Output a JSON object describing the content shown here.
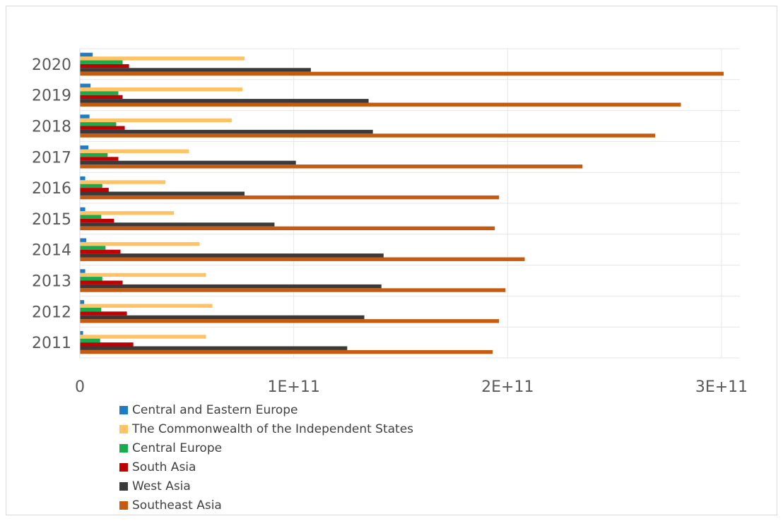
{
  "chart_data": {
    "type": "bar",
    "orientation": "horizontal",
    "categories": [
      "2011",
      "2012",
      "2013",
      "2014",
      "2015",
      "2016",
      "2017",
      "2018",
      "2019",
      "2020"
    ],
    "xlim": [
      0,
      300000000000
    ],
    "xticks": [
      0,
      100000000000,
      200000000000,
      300000000000
    ],
    "xtick_labels": [
      "0",
      "1E+11",
      "2E+11",
      "3E+11"
    ],
    "grid": true,
    "legend_position": "bottom-left",
    "series": [
      {
        "name": "Central and Eastern Europe",
        "color": "#1f7bc4",
        "values": [
          1500000000.0,
          2000000000.0,
          2500000000.0,
          3000000000.0,
          2500000000.0,
          2500000000.0,
          4000000000.0,
          4500000000.0,
          5000000000.0,
          6000000000.0
        ]
      },
      {
        "name": "The Commonwealth of the Independent States",
        "color": "#ffc366",
        "values": [
          59000000000.0,
          62000000000.0,
          59000000000.0,
          56000000000.0,
          44000000000.0,
          40000000000.0,
          51000000000.0,
          71000000000.0,
          76000000000.0,
          77000000000.0
        ]
      },
      {
        "name": "Central Europe",
        "color": "#1aab4c",
        "values": [
          9500000000.0,
          10000000000.0,
          10500000000.0,
          12000000000.0,
          10000000000.0,
          10500000000.0,
          13000000000.0,
          17000000000.0,
          18000000000.0,
          20000000000.0
        ]
      },
      {
        "name": "South Asia",
        "color": "#c00000",
        "values": [
          25000000000.0,
          22000000000.0,
          20000000000.0,
          19000000000.0,
          16000000000.0,
          13500000000.0,
          18000000000.0,
          21000000000.0,
          20000000000.0,
          23000000000.0
        ]
      },
      {
        "name": "West Asia",
        "color": "#3a3a3a",
        "values": [
          125000000000.0,
          133000000000.0,
          141000000000.0,
          142000000000.0,
          91000000000.0,
          77000000000.0,
          101000000000.0,
          137000000000.0,
          135000000000.0,
          108000000000.0
        ]
      },
      {
        "name": "Southeast Asia",
        "color": "#c55a11",
        "values": [
          193000000000.0,
          196000000000.0,
          199000000000.0,
          208000000000.0,
          194000000000.0,
          196000000000.0,
          235000000000.0,
          269000000000.0,
          281000000000.0,
          301000000000.0
        ]
      }
    ]
  }
}
